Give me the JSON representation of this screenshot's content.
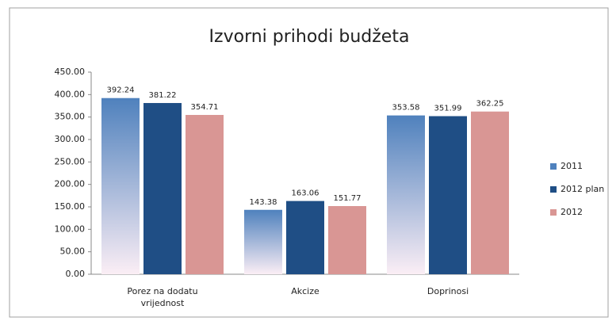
{
  "chart_data": {
    "type": "bar",
    "title": "Izvorni prihodi budžeta",
    "categories": [
      "Porez na dodatu vrijednost",
      "Akcize",
      "Doprinosi"
    ],
    "series": [
      {
        "name": "2011",
        "color": "#4f81bd",
        "values": [
          392.24,
          143.38,
          353.58
        ]
      },
      {
        "name": "2012 plan",
        "color": "#1f4e85",
        "values": [
          381.22,
          163.06,
          351.99
        ]
      },
      {
        "name": "2012",
        "color": "#d99694",
        "values": [
          354.71,
          151.77,
          362.25
        ]
      }
    ],
    "ylim": [
      0,
      450
    ],
    "yticks": [
      {
        "value": 0,
        "label": "0.00"
      },
      {
        "value": 50,
        "label": "50.00"
      },
      {
        "value": 100,
        "label": "100.00"
      },
      {
        "value": 150,
        "label": "150.00"
      },
      {
        "value": 200,
        "label": "200.00"
      },
      {
        "value": 250,
        "label": "250.00"
      },
      {
        "value": 300,
        "label": "300.00"
      },
      {
        "value": 350,
        "label": "350.00"
      },
      {
        "value": 400,
        "label": "400.00"
      },
      {
        "value": 450,
        "label": "450.00"
      }
    ],
    "legend": "right",
    "grid": false
  }
}
